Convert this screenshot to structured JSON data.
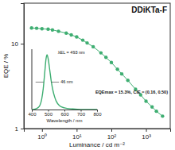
{
  "chart_data": [
    {
      "type": "line",
      "title": "DDiKTa-F",
      "x_label": "Luminance / cd m⁻²",
      "y_label": "EQE / %",
      "log": true,
      "grid": false,
      "color": "#3fae72",
      "marker": "circle",
      "line_style": "solid",
      "annotations": [
        "EQEmax = 15.3%, CIE = (0.16, 0.50)"
      ],
      "x": [
        0.5,
        0.7,
        1,
        1.5,
        2,
        3,
        5,
        7,
        10,
        15,
        20,
        30,
        50,
        70,
        100,
        150,
        200,
        300,
        500,
        700,
        1000,
        1500,
        2000,
        3000
      ],
      "values": [
        15.3,
        15.2,
        15.0,
        14.8,
        14.5,
        14.0,
        13.3,
        12.7,
        12.0,
        11.0,
        10.2,
        9.2,
        7.8,
        6.9,
        6.0,
        5.0,
        4.4,
        3.7,
        2.9,
        2.5,
        2.1,
        1.8,
        1.6,
        1.4
      ],
      "xlim": [
        0.3,
        5000
      ],
      "xticks": [
        {
          "value": 1,
          "label": "10⁰"
        },
        {
          "value": 10,
          "label": "10¹"
        },
        {
          "value": 100,
          "label": "10²"
        },
        {
          "value": 1000,
          "label": "10³"
        }
      ],
      "ylim": [
        1,
        30
      ],
      "yticks": [
        1,
        10
      ]
    },
    {
      "type": "line",
      "x_label": "Wavelength / nm",
      "color": "#3fae72",
      "line_style": "solid",
      "tick_labels": "x",
      "annotations": [
        "λEL = 493 nm",
        "46 nm"
      ],
      "x": [
        400,
        420,
        440,
        450,
        460,
        470,
        480,
        487,
        493,
        500,
        510,
        520,
        530,
        540,
        550,
        570,
        600,
        650,
        700,
        750,
        800
      ],
      "values": [
        0,
        0.01,
        0.04,
        0.08,
        0.18,
        0.38,
        0.7,
        0.92,
        1.0,
        0.93,
        0.72,
        0.5,
        0.34,
        0.23,
        0.15,
        0.07,
        0.03,
        0.01,
        0,
        0,
        0
      ],
      "xlim": [
        400,
        800
      ],
      "xticks": [
        400,
        500,
        600,
        700,
        800
      ],
      "ylim": [
        0,
        1.1
      ]
    }
  ]
}
